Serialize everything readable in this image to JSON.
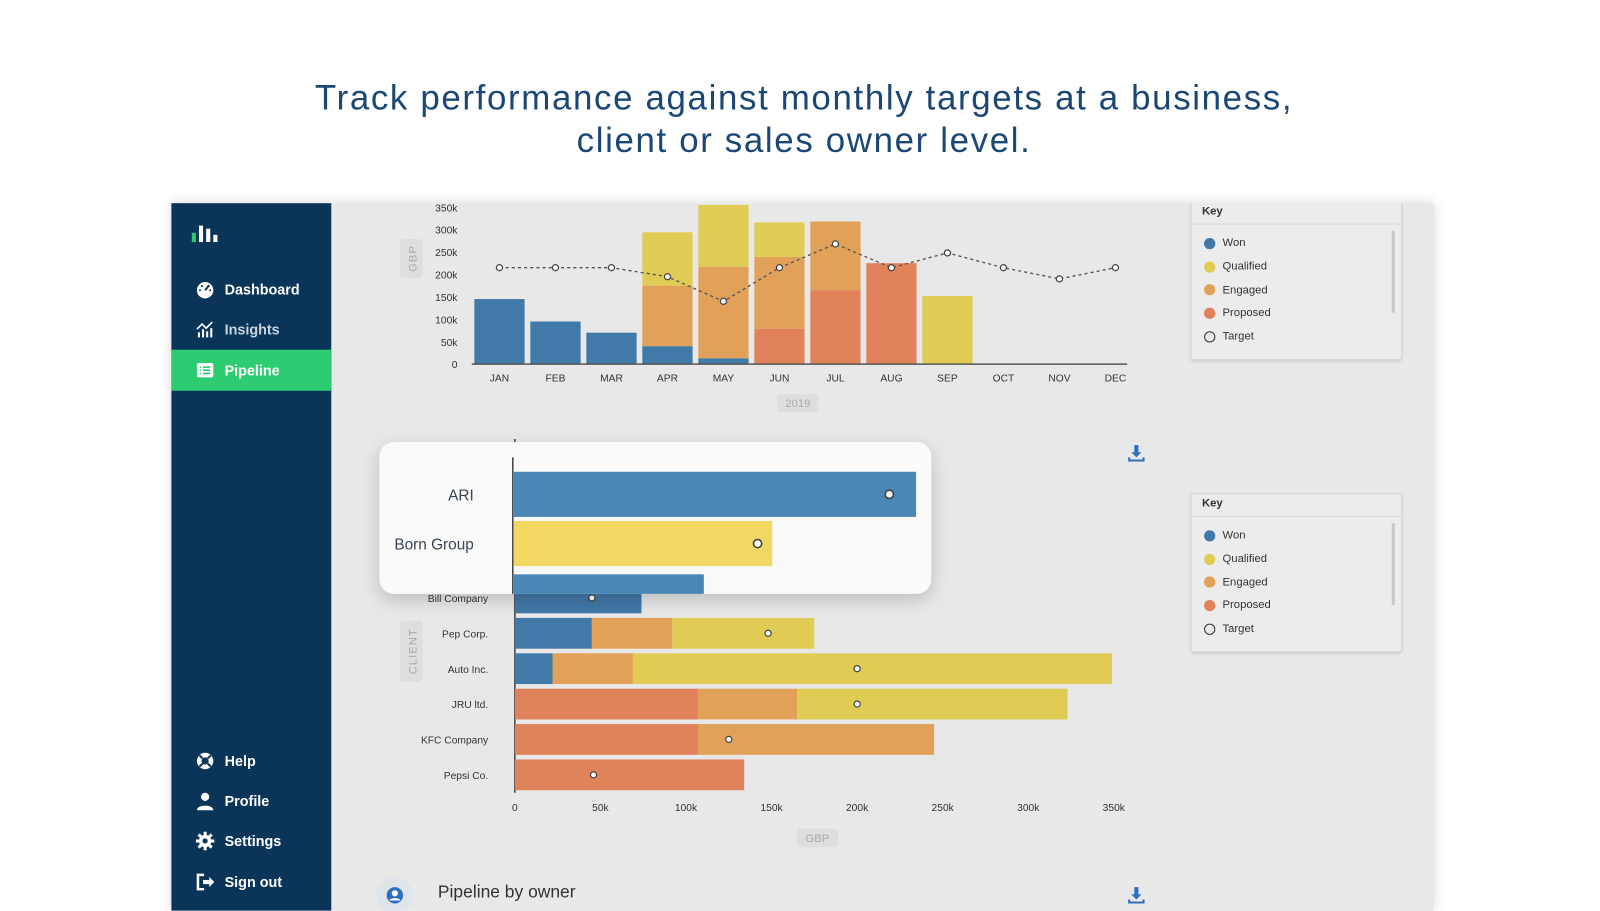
{
  "headline": {
    "line1": "Track performance against monthly targets at a business,",
    "line2": "client or sales owner level."
  },
  "sidebar": {
    "items": [
      {
        "label": "Dashboard",
        "icon": "gauge-icon"
      },
      {
        "label": "Insights",
        "icon": "chart-line-icon"
      },
      {
        "label": "Pipeline",
        "icon": "list-icon",
        "active": true
      },
      {
        "label": "Help",
        "icon": "lifebuoy-icon"
      },
      {
        "label": "Profile",
        "icon": "user-icon"
      },
      {
        "label": "Settings",
        "icon": "gear-icon"
      },
      {
        "label": "Sign out",
        "icon": "sign-out-icon"
      }
    ]
  },
  "colors": {
    "won": "#4179a8",
    "qualified": "#e0cb55",
    "engaged": "#e2a158",
    "proposed": "#e0825a",
    "sidebar": "#0b3558",
    "active": "#2ecc71",
    "headline": "#1b4775"
  },
  "key": {
    "title": "Key",
    "items": [
      "Won",
      "Qualified",
      "Engaged",
      "Proposed",
      "Target"
    ]
  },
  "section": {
    "owner_title": "Pipeline by owner"
  },
  "chart_data": [
    {
      "type": "bar",
      "stacked": true,
      "ylabel": "GBP",
      "xlabel": "2019",
      "ylim": [
        0,
        350000
      ],
      "yticks": [
        "0",
        "50k",
        "100k",
        "150k",
        "200k",
        "250k",
        "300k",
        "350k"
      ],
      "categories": [
        "JAN",
        "FEB",
        "MAR",
        "APR",
        "MAY",
        "JUN",
        "JUL",
        "AUG",
        "SEP",
        "OCT",
        "NOV",
        "DEC"
      ],
      "series": [
        {
          "name": "Won",
          "values": [
            145000,
            95000,
            70000,
            40000,
            13000,
            0,
            0,
            0,
            0,
            0,
            0,
            0
          ]
        },
        {
          "name": "Proposed",
          "values": [
            0,
            0,
            0,
            0,
            0,
            79000,
            165000,
            225000,
            0,
            0,
            0,
            0
          ]
        },
        {
          "name": "Engaged",
          "values": [
            0,
            0,
            0,
            135000,
            204000,
            160000,
            153000,
            0,
            0,
            0,
            0,
            0
          ]
        },
        {
          "name": "Qualified",
          "values": [
            0,
            0,
            0,
            119000,
            138000,
            77000,
            0,
            0,
            152000,
            0,
            0,
            0
          ]
        }
      ],
      "target": {
        "name": "Target",
        "values": [
          215000,
          215000,
          215000,
          195000,
          140000,
          215000,
          268000,
          215000,
          248000,
          215000,
          190000,
          215000
        ]
      }
    },
    {
      "type": "bar",
      "orientation": "horizontal",
      "stacked": true,
      "ylabel": "CLIENT",
      "xlabel": "GBP",
      "xlim": [
        0,
        350000
      ],
      "xticks": [
        "0",
        "50k",
        "100k",
        "150k",
        "200k",
        "250k",
        "300k",
        "350k"
      ],
      "categories": [
        "Bill Company",
        "Pep Corp.",
        "Auto Inc.",
        "JRU ltd.",
        "KFC Company",
        "Pepsi Co."
      ],
      "series": [
        {
          "name": "Won",
          "values": [
            74000,
            45000,
            22000,
            0,
            0,
            0
          ]
        },
        {
          "name": "Proposed",
          "values": [
            0,
            0,
            0,
            107000,
            107000,
            134000
          ]
        },
        {
          "name": "Engaged",
          "values": [
            0,
            47000,
            47000,
            58000,
            138000,
            0
          ]
        },
        {
          "name": "Qualified",
          "values": [
            0,
            83000,
            280000,
            158000,
            0,
            0
          ]
        }
      ],
      "target": {
        "name": "Target",
        "values": [
          45000,
          148000,
          200000,
          200000,
          125000,
          46000
        ]
      }
    },
    {
      "type": "bar",
      "orientation": "horizontal",
      "note_visible": "magnified",
      "categories": [
        "ARI",
        "Born Group",
        ""
      ],
      "series": [
        {
          "name": "Won",
          "values": [
            235000,
            0,
            111000
          ]
        },
        {
          "name": "Qualified",
          "values": [
            0,
            151000,
            0
          ]
        }
      ],
      "target": {
        "name": "Target",
        "values": [
          220000,
          143000,
          null
        ]
      }
    }
  ]
}
